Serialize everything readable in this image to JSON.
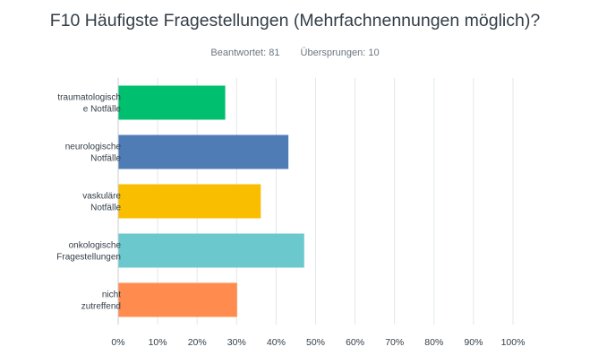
{
  "title": "F10 Häufigste Fragestellungen (Mehrfachnennungen möglich)?",
  "meta": {
    "answered": "Beantwortet: 81",
    "skipped": "Übersprungen: 10"
  },
  "colors": {
    "grid": "#e3e6e8",
    "axis": "#c9ced2",
    "text": "#333e48",
    "meta": "#6a7681"
  },
  "chart_data": {
    "type": "bar",
    "orientation": "horizontal",
    "categories": [
      [
        "traumatologisch",
        "e Notfälle"
      ],
      [
        "neurologische",
        "Notfälle"
      ],
      [
        "vaskuläre",
        "Notfälle"
      ],
      [
        "onkologische",
        "Fragestellungen"
      ],
      [
        "nicht",
        "zutreffend"
      ]
    ],
    "values": [
      27,
      43,
      36,
      47,
      30
    ],
    "colors": [
      "#00bf6f",
      "#507cb6",
      "#f9be00",
      "#6bc8cd",
      "#ff8b4f"
    ],
    "xticks": [
      "0%",
      "10%",
      "20%",
      "30%",
      "40%",
      "50%",
      "60%",
      "70%",
      "80%",
      "90%",
      "100%"
    ],
    "xlim": [
      0,
      100
    ],
    "grid": true
  }
}
